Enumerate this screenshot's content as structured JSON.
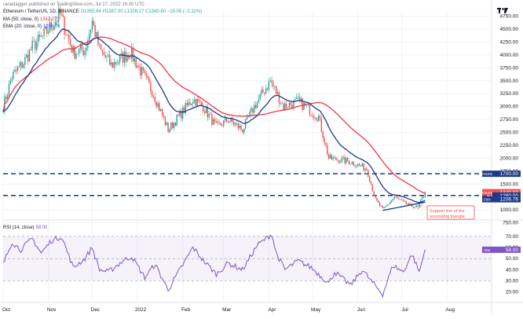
{
  "header": {
    "published": "ranadagger published on TradingView.com, Jul 17, 2022 16:30 UTC",
    "symbol_line": "Ethereum / TetherUS, 1D, BINANCE",
    "ohlc_values": "O1355.84 H1387.00 L1328.17 C1340.80 −15.05 (−1.11%)",
    "ma_label": "MA (50, close, 0)",
    "ma_value": "1342.27",
    "ema_label": "EMA (20, close, 0)",
    "ema_value": "1206.76",
    "rsi_label": "RSI (14, close)",
    "rsi_value": "58.00"
  },
  "colors": {
    "up": "#26a69a",
    "down": "#ef5350",
    "ma": "#f23645",
    "ema": "#1e3a8a",
    "rsi": "#7e57c2",
    "level": "#1e3a8a"
  },
  "annotation": {
    "line1": "Support line of the",
    "line2": "ascending triangle"
  },
  "chart_data": [
    {
      "type": "candlestick",
      "title": "Ethereum / TetherUS, 1D, BINANCE",
      "x_range": [
        "2021-10-01",
        "2022-08-31"
      ],
      "ylim": [
        820,
        4850
      ],
      "y_ticks": [
        4750,
        4500,
        4250,
        4000,
        3750,
        3500,
        3250,
        3000,
        2750,
        2500,
        2250,
        2000,
        1750,
        1500,
        1250,
        1000,
        750
      ],
      "x_ticks": [
        "Oct",
        "Nov",
        "Dec",
        "2022",
        "Feb",
        "Mar",
        "Apr",
        "May",
        "Jun",
        "Jul",
        "Aug"
      ],
      "x_tick_dates": [
        "2021-10-01",
        "2021-11-01",
        "2021-12-01",
        "2022-01-01",
        "2022-02-01",
        "2022-03-01",
        "2022-04-01",
        "2022-05-01",
        "2022-06-01",
        "2022-07-01",
        "2022-08-01"
      ],
      "close_keyframes": [
        [
          "2021-10-01",
          3000
        ],
        [
          "2021-10-07",
          3580
        ],
        [
          "2021-10-15",
          3850
        ],
        [
          "2021-10-21",
          4150
        ],
        [
          "2021-10-29",
          4380
        ],
        [
          "2021-11-09",
          4780
        ],
        [
          "2021-11-18",
          4050
        ],
        [
          "2021-11-26",
          4100
        ],
        [
          "2021-12-01",
          4650
        ],
        [
          "2021-12-06",
          4100
        ],
        [
          "2021-12-14",
          3800
        ],
        [
          "2021-12-27",
          4050
        ],
        [
          "2022-01-05",
          3600
        ],
        [
          "2022-01-12",
          3250
        ],
        [
          "2022-01-22",
          2550
        ],
        [
          "2022-02-08",
          3150
        ],
        [
          "2022-02-15",
          3000
        ],
        [
          "2022-02-24",
          2600
        ],
        [
          "2022-03-04",
          2750
        ],
        [
          "2022-03-14",
          2550
        ],
        [
          "2022-03-22",
          3000
        ],
        [
          "2022-04-02",
          3500
        ],
        [
          "2022-04-11",
          3000
        ],
        [
          "2022-04-21",
          3100
        ],
        [
          "2022-05-05",
          2800
        ],
        [
          "2022-05-12",
          2000
        ],
        [
          "2022-05-25",
          1950
        ],
        [
          "2022-06-07",
          1800
        ],
        [
          "2022-06-13",
          1200
        ],
        [
          "2022-06-18",
          1000
        ],
        [
          "2022-06-26",
          1250
        ],
        [
          "2022-07-05",
          1100
        ],
        [
          "2022-07-12",
          1050
        ],
        [
          "2022-07-17",
          1340.8
        ]
      ],
      "series": [
        {
          "name": "MA (50, close, 0)",
          "last": 1342.27
        },
        {
          "name": "EMA (20, close, 0)",
          "last": 1206.76
        }
      ],
      "horizontal_levels": [
        1700.0,
        1280.0
      ],
      "price_labels": [
        {
          "label": "1700.00",
          "value": 1700.0,
          "color": "#1e3a8a"
        },
        {
          "label": "MA",
          "value": 1342.27,
          "color": "#f23645",
          "text": "1342.27"
        },
        {
          "label": "ETHUSDT",
          "value": 1340.8,
          "color": "#ef5350",
          "text": "1340.80",
          "sub": "07:29:33"
        },
        {
          "label": "",
          "value": 1280.0,
          "color": "#1e3a8a",
          "text": "1280.00"
        },
        {
          "label": "EMA",
          "value": 1206.76,
          "color": "#1e3a8a",
          "text": "1206.76"
        }
      ],
      "support_line": [
        [
          "2022-06-18",
          990
        ],
        [
          "2022-07-17",
          1150
        ]
      ]
    },
    {
      "type": "line",
      "title": "RSI (14, close)",
      "ylim": [
        12,
        84
      ],
      "y_ticks": [
        70.0,
        60.0,
        50.0,
        40.0,
        30.0,
        20.0
      ],
      "bands": [
        30,
        70
      ],
      "last": 58.0,
      "rsi_keyframes": [
        [
          "2021-10-01",
          45
        ],
        [
          "2021-10-07",
          65
        ],
        [
          "2021-10-13",
          58
        ],
        [
          "2021-10-21",
          68
        ],
        [
          "2021-10-27",
          55
        ],
        [
          "2021-11-03",
          66
        ],
        [
          "2021-11-10",
          70
        ],
        [
          "2021-11-18",
          42
        ],
        [
          "2021-11-26",
          50
        ],
        [
          "2021-12-01",
          60
        ],
        [
          "2021-12-06",
          40
        ],
        [
          "2021-12-12",
          38
        ],
        [
          "2021-12-22",
          48
        ],
        [
          "2021-12-28",
          52
        ],
        [
          "2022-01-06",
          33
        ],
        [
          "2022-01-13",
          45
        ],
        [
          "2022-01-22",
          22
        ],
        [
          "2022-02-08",
          60
        ],
        [
          "2022-02-14",
          50
        ],
        [
          "2022-02-24",
          36
        ],
        [
          "2022-03-04",
          46
        ],
        [
          "2022-03-14",
          40
        ],
        [
          "2022-03-24",
          62
        ],
        [
          "2022-04-03",
          72
        ],
        [
          "2022-04-06",
          55
        ],
        [
          "2022-04-12",
          40
        ],
        [
          "2022-04-21",
          48
        ],
        [
          "2022-04-30",
          42
        ],
        [
          "2022-05-12",
          28
        ],
        [
          "2022-05-16",
          38
        ],
        [
          "2022-05-27",
          26
        ],
        [
          "2022-06-04",
          40
        ],
        [
          "2022-06-10",
          30
        ],
        [
          "2022-06-18",
          18
        ],
        [
          "2022-06-25",
          44
        ],
        [
          "2022-07-02",
          38
        ],
        [
          "2022-07-08",
          54
        ],
        [
          "2022-07-13",
          38
        ],
        [
          "2022-07-17",
          58
        ]
      ]
    }
  ]
}
